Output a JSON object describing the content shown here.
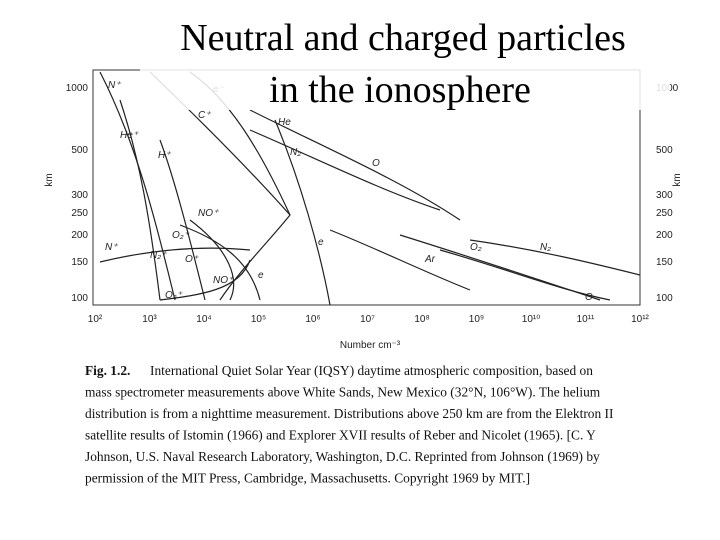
{
  "slide": {
    "title_lines": [
      "Neutral and charged particles",
      "in the ionosphere"
    ]
  },
  "figure": {
    "y_axis_label": "km",
    "y_tick_labels": [
      "1000",
      "500",
      "300",
      "250",
      "200",
      "150",
      "100"
    ],
    "x_axis_label": "Number cm⁻³",
    "x_tick_labels": [
      "10²",
      "10³",
      "10⁴",
      "10⁵",
      "10⁶",
      "10⁷",
      "10⁸",
      "10⁹",
      "10¹⁰",
      "10¹¹",
      "10¹²"
    ],
    "curve_labels": [
      "N⁺",
      "e⁻",
      "He⁺",
      "H⁺",
      "C⁺",
      "He",
      "N₂",
      "O",
      "NO⁺",
      "O₂⁺",
      "N⁺",
      "N₂⁺",
      "O⁺",
      "e",
      "O₂",
      "N₂",
      "Ar",
      "NO⁺",
      "e",
      "O₂⁺",
      "O"
    ]
  },
  "caption": {
    "label": "Fig. 1.2.",
    "lines": [
      "International Quiet Solar Year (IQSY) daytime atmospheric composition, based on",
      "mass spectrometer measurements above White Sands, New Mexico (32°N, 106°W). The helium",
      "distribution is from a nighttime measurement. Distributions above 250 km are from the Elektron II",
      "satellite results of Istomin (1966) and Explorer XVII results of Reber and Nicolet (1965). [C. Y",
      "Johnson, U.S. Naval Research Laboratory, Washington, D.C. Reprinted from Johnson (1969) by",
      "permission of the MIT Press, Cambridge, Massachusetts. Copyright 1969 by MIT.]"
    ]
  }
}
